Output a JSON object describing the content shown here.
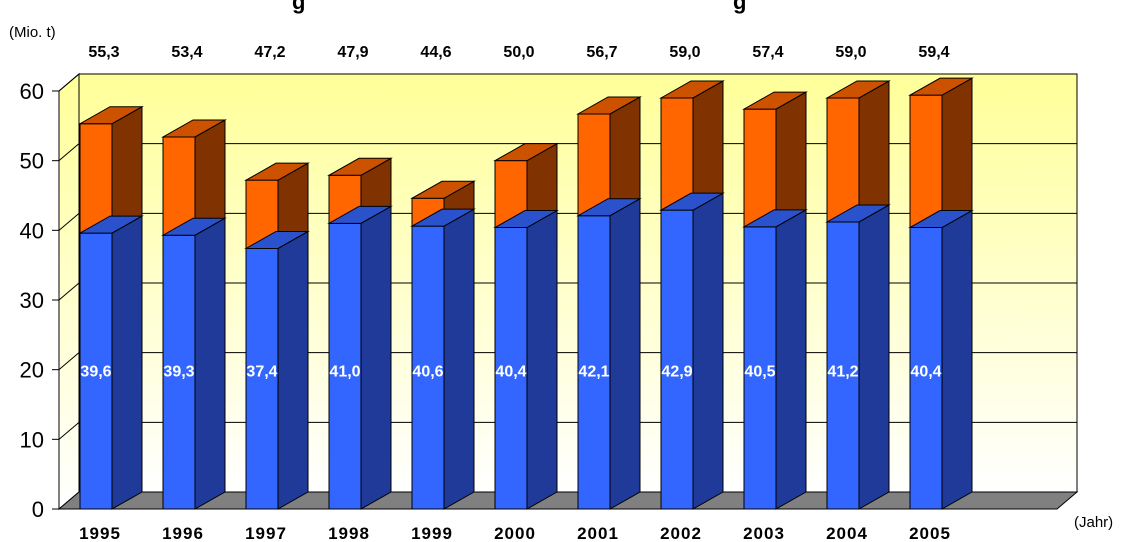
{
  "chart_data": {
    "type": "bar",
    "stacked": true,
    "three_d": true,
    "title": "g",
    "title_right": "g",
    "ylabel": "(Mio. t)",
    "xlabel": "(Jahr)",
    "ylim": [
      0,
      60
    ],
    "yticks": [
      "0",
      "10",
      "20",
      "30",
      "40",
      "50",
      "60"
    ],
    "grid": true,
    "categories": [
      "1995",
      "1996",
      "1997",
      "1998",
      "1999",
      "2000",
      "2001",
      "2002",
      "2003",
      "2004",
      "2005"
    ],
    "series": [
      {
        "color": "#3366ff",
        "values": [
          39.6,
          39.3,
          37.4,
          41.0,
          40.6,
          40.4,
          42.1,
          42.9,
          40.5,
          41.2,
          40.4
        ],
        "labels": [
          "39,6",
          "39,3",
          "37,4",
          "41,0",
          "40,6",
          "40,4",
          "42,1",
          "42,9",
          "40,5",
          "41,2",
          "40,4"
        ]
      },
      {
        "color": "#ff6600",
        "values": [
          15.7,
          14.1,
          9.8,
          6.9,
          4.0,
          9.6,
          14.6,
          16.1,
          16.9,
          17.8,
          19.0
        ]
      }
    ],
    "totals": [
      55.3,
      53.4,
      47.2,
      47.9,
      44.6,
      50.0,
      56.7,
      59.0,
      57.4,
      59.0,
      59.4
    ],
    "total_labels": [
      "55,3",
      "53,4",
      "47,2",
      "47,9",
      "44,6",
      "50,0",
      "56,7",
      "59,0",
      "57,4",
      "59,0",
      "59,4"
    ],
    "background": "yellow-to-white gradient",
    "floor_color": "#808080"
  }
}
